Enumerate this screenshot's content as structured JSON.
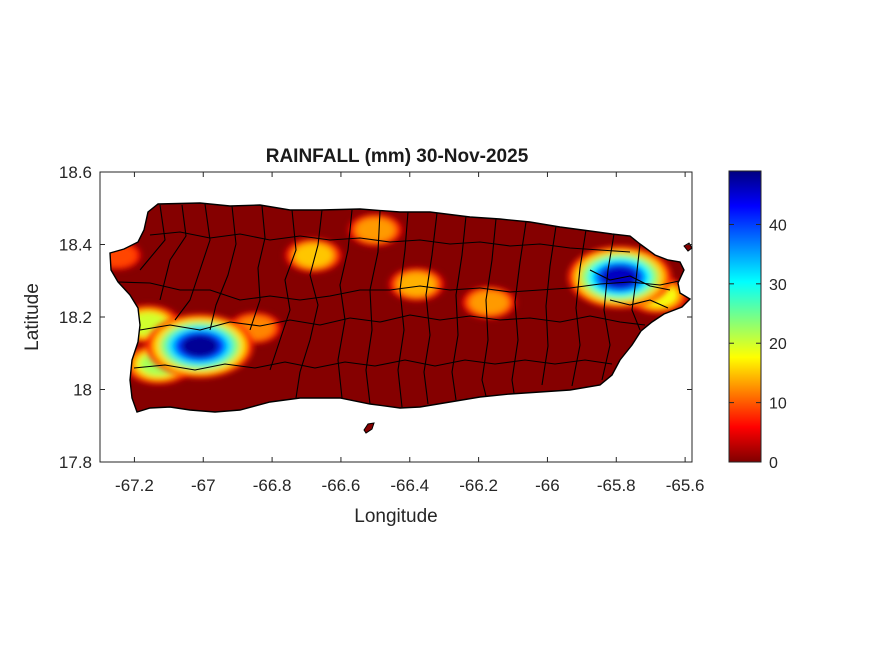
{
  "chart_data": {
    "type": "heatmap",
    "title": "RAINFALL (mm) 30-Nov-2025",
    "xlabel": "Longitude",
    "ylabel": "Latitude",
    "xlim": [
      -67.3,
      -65.58
    ],
    "ylim": [
      17.8,
      18.6
    ],
    "x_ticks": [
      -67.2,
      -67,
      -66.8,
      -66.6,
      -66.4,
      -66.2,
      -66,
      -65.8,
      -65.6
    ],
    "y_ticks": [
      17.8,
      18,
      18.2,
      18.4,
      18.6
    ],
    "colorbar": {
      "colormap": "jet",
      "min": 0,
      "max": 49,
      "ticks": [
        0,
        10,
        20,
        30,
        40
      ]
    },
    "rainfall_hotspots": [
      {
        "lon": -67.01,
        "lat": 18.12,
        "value": 48
      },
      {
        "lon": -65.79,
        "lat": 18.31,
        "value": 46
      },
      {
        "lon": -67.13,
        "lat": 18.07,
        "value": 22
      },
      {
        "lon": -67.16,
        "lat": 18.18,
        "value": 20
      },
      {
        "lon": -65.68,
        "lat": 18.26,
        "value": 18
      },
      {
        "lon": -66.68,
        "lat": 18.37,
        "value": 15
      },
      {
        "lon": -66.38,
        "lat": 18.29,
        "value": 14
      },
      {
        "lon": -66.5,
        "lat": 18.44,
        "value": 13
      },
      {
        "lon": -66.17,
        "lat": 18.24,
        "value": 13
      },
      {
        "lon": -66.85,
        "lat": 18.17,
        "value": 12
      },
      {
        "lon": -67.25,
        "lat": 18.37,
        "value": 9
      }
    ]
  }
}
